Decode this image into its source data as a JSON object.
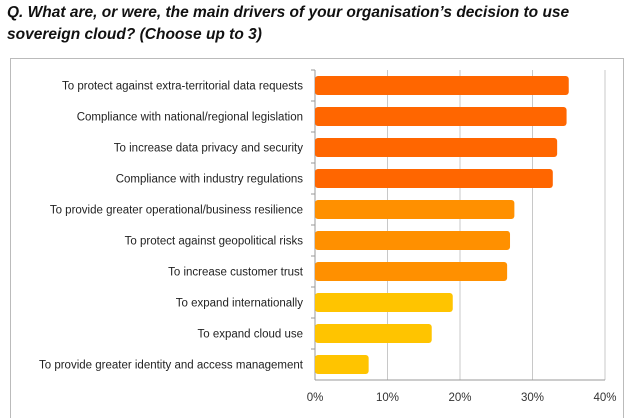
{
  "title": "Q. What are, or were, the main drivers of your organisation’s decision to use sovereign cloud? (Choose up to 3)",
  "chart_data": {
    "type": "bar",
    "orientation": "horizontal",
    "title": "Q. What are, or were, the main drivers of your organisation’s decision to use sovereign cloud? (Choose up to 3)",
    "categories": [
      "To protect against extra-territorial data requests",
      "Compliance with national/regional legislation",
      "To increase data privacy and security",
      "Compliance with industry regulations",
      "To provide greater operational/business resilience",
      "To protect against geopolitical risks",
      "To increase customer trust",
      "To expand internationally",
      "To expand cloud use",
      "To provide greater identity and access management"
    ],
    "values": [
      35.0,
      34.7,
      33.4,
      32.8,
      27.5,
      26.9,
      26.5,
      19.0,
      16.1,
      7.4
    ],
    "colors": [
      "#ff6600",
      "#ff6600",
      "#ff6600",
      "#ff6600",
      "#ff9000",
      "#ff9000",
      "#ff9000",
      "#ffc400",
      "#ffc400",
      "#ffc400"
    ],
    "xlim": [
      0,
      40
    ],
    "xticks": [
      "0%",
      "10%",
      "20%",
      "30%",
      "40%"
    ],
    "grid": true,
    "unit": "%"
  }
}
